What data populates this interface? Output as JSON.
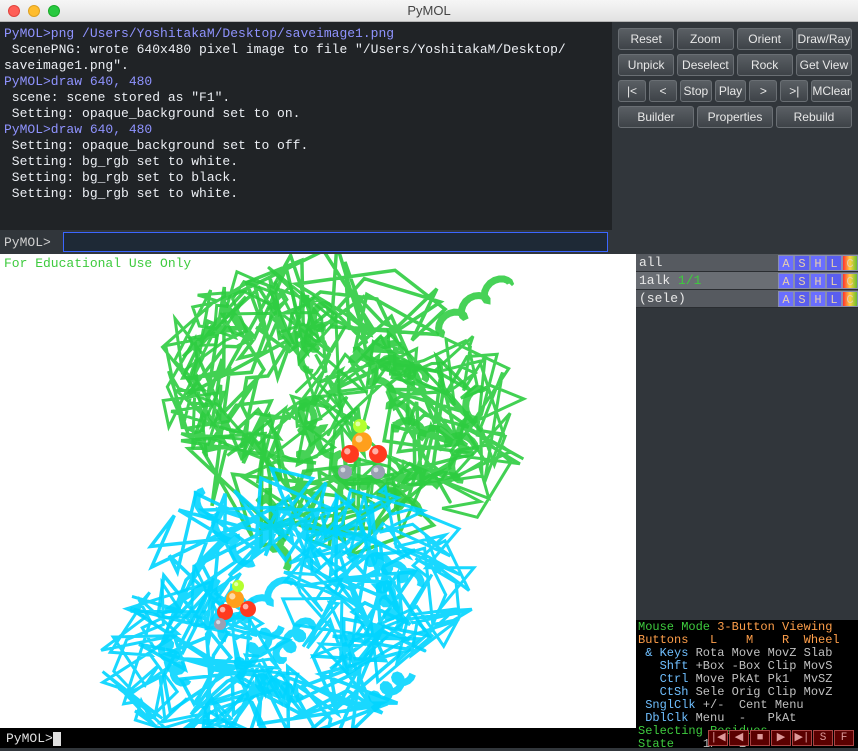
{
  "title": "PyMOL",
  "console": {
    "lines": [
      {
        "cls": "cmd",
        "t": "PyMOL>png /Users/YoshitakaM/Desktop/saveimage1.png"
      },
      {
        "cls": "",
        "t": " ScenePNG: wrote 640x480 pixel image to file \"/Users/YoshitakaM/Desktop/"
      },
      {
        "cls": "",
        "t": "saveimage1.png\"."
      },
      {
        "cls": "cmd",
        "t": "PyMOL>draw 640, 480"
      },
      {
        "cls": "",
        "t": " scene: scene stored as \"F1\"."
      },
      {
        "cls": "",
        "t": " Setting: opaque_background set to on."
      },
      {
        "cls": "cmd",
        "t": "PyMOL>draw 640, 480"
      },
      {
        "cls": "",
        "t": " Setting: opaque_background set to off."
      },
      {
        "cls": "",
        "t": " Setting: bg_rgb set to white."
      },
      {
        "cls": "",
        "t": " Setting: bg_rgb set to black."
      },
      {
        "cls": "",
        "t": " Setting: bg_rgb set to white."
      }
    ]
  },
  "buttonRows": [
    [
      {
        "l": "Reset",
        "n": "reset-button"
      },
      {
        "l": "Zoom",
        "n": "zoom-button"
      },
      {
        "l": "Orient",
        "n": "orient-button"
      },
      {
        "l": "Draw/Ray",
        "n": "draw-ray-button"
      }
    ],
    [
      {
        "l": "Unpick",
        "n": "unpick-button"
      },
      {
        "l": "Deselect",
        "n": "deselect-button"
      },
      {
        "l": "Rock",
        "n": "rock-button"
      },
      {
        "l": "Get View",
        "n": "get-view-button"
      }
    ],
    [
      {
        "l": "|<",
        "n": "rewind-button",
        "w": "narrow"
      },
      {
        "l": "<",
        "n": "prev-button",
        "w": "narrow"
      },
      {
        "l": "Stop",
        "n": "stop-button"
      },
      {
        "l": "Play",
        "n": "play-button"
      },
      {
        "l": ">",
        "n": "next-button",
        "w": "narrow"
      },
      {
        "l": ">|",
        "n": "ffwd-button",
        "w": "narrow"
      },
      {
        "l": "MClear",
        "n": "mclear-button"
      }
    ],
    [
      {
        "l": "Builder",
        "n": "builder-button"
      },
      {
        "l": "Properties",
        "n": "properties-button"
      },
      {
        "l": "Rebuild",
        "n": "rebuild-button"
      }
    ]
  ],
  "prompt": "PyMOL> ",
  "input": "",
  "eduText": "For Educational Use Only",
  "objects": [
    {
      "name": "all",
      "state": "",
      "cls": "",
      "n": "object-row-all"
    },
    {
      "name": "1alk",
      "state": " 1/1",
      "cls": "selected",
      "n": "object-row-1alk"
    },
    {
      "name": "(sele)",
      "state": "",
      "cls": "dead",
      "n": "object-row-sele"
    }
  ],
  "ashlc": [
    "A",
    "S",
    "H",
    "L",
    "C"
  ],
  "mouseLines": [
    [
      {
        "c": "mp-green",
        "t": "Mouse Mode "
      },
      {
        "c": "mp-orange",
        "t": "3-Button Viewing"
      }
    ],
    [
      {
        "c": "mp-orange",
        "t": "Buttons   L    M    R  Wheel"
      }
    ],
    [
      {
        "c": "mp-cyan",
        "t": " & Keys "
      },
      {
        "c": "",
        "t": "Rota Move MovZ Slab"
      }
    ],
    [
      {
        "c": "mp-cyan",
        "t": "   Shft "
      },
      {
        "c": "",
        "t": "+Box -Box Clip MovS"
      }
    ],
    [
      {
        "c": "mp-cyan",
        "t": "   Ctrl "
      },
      {
        "c": "",
        "t": "Move PkAt Pk1  MvSZ"
      }
    ],
    [
      {
        "c": "mp-cyan",
        "t": "   CtSh "
      },
      {
        "c": "",
        "t": "Sele Orig Clip MovZ"
      }
    ],
    [
      {
        "c": "mp-cyan",
        "t": " SnglClk "
      },
      {
        "c": "",
        "t": "+/-  Cent Menu"
      }
    ],
    [
      {
        "c": "mp-cyan",
        "t": " DblClk "
      },
      {
        "c": "",
        "t": "Menu  -   PkAt"
      }
    ],
    [
      {
        "c": "mp-green",
        "t": "Selecting Residues"
      }
    ],
    [
      {
        "c": "mp-green",
        "t": "State "
      },
      {
        "c": "",
        "t": "   1/   1"
      }
    ]
  ],
  "botPrompt": "PyMOL>",
  "playbackButtons": [
    "|◀",
    "◀",
    "■",
    "▶",
    "▶|",
    "S",
    "F"
  ],
  "colors": {
    "chainA": "#2ecc40",
    "chainB": "#00d4ff",
    "atomRed": "#ff3a1f",
    "atomOrange": "#ff9f1c",
    "atomLime": "#b4ff2e",
    "atomGrey": "#9aa0b3"
  }
}
